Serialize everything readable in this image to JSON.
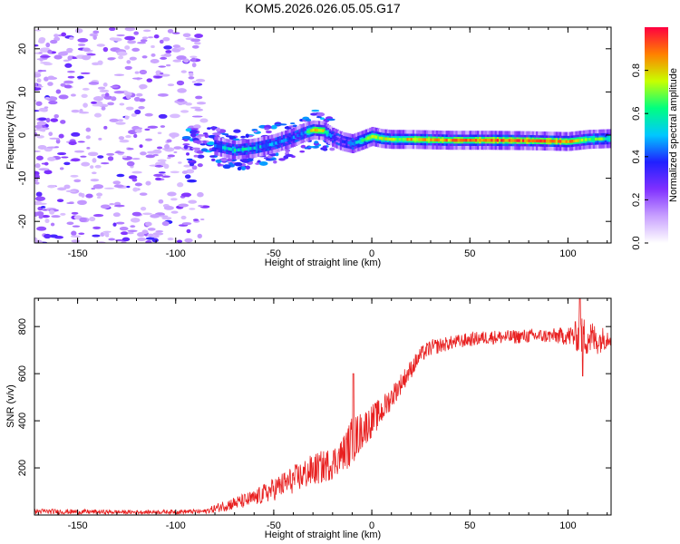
{
  "title": "KOM5.2026.026.05.05.G17",
  "colors": {
    "snr_line": "#e82020",
    "colormap": [
      "#ffffff",
      "#c8a0ff",
      "#8030ff",
      "#2020ff",
      "#00c8ff",
      "#00ff80",
      "#c8ff00",
      "#ff8000",
      "#ff0040"
    ]
  },
  "chart_data": [
    {
      "type": "heatmap",
      "name": "spectrogram",
      "xlabel": "Height of straight line (km)",
      "ylabel": "Frequency (Hz)",
      "xlim": [
        -172,
        122
      ],
      "ylim": [
        -25,
        25
      ],
      "xticks": [
        -150,
        -100,
        -50,
        0,
        50,
        100
      ],
      "xtick_labels": [
        "-150",
        "-100",
        "-50",
        "0",
        "50",
        "100"
      ],
      "yticks": [
        -20,
        -10,
        0,
        10,
        20
      ],
      "ytick_labels": [
        "-20",
        "-10",
        "0",
        "10",
        "20"
      ],
      "colorbar": {
        "label": "Normalized spectral amplitude",
        "range": [
          0,
          1
        ],
        "ticks": [
          0.0,
          0.2,
          0.4,
          0.6,
          0.8
        ],
        "tick_labels": [
          "0.0",
          "0.2",
          "0.4",
          "0.6",
          "0.8"
        ]
      },
      "ridge": {
        "x": [
          -80,
          -70,
          -60,
          -50,
          -40,
          -35,
          -30,
          -25,
          -20,
          -15,
          -10,
          -5,
          0,
          5,
          10,
          20,
          40,
          60,
          80,
          100,
          110,
          122
        ],
        "y": [
          -2.5,
          -3.5,
          -3.0,
          -2.0,
          -0.5,
          0.5,
          1.2,
          1.0,
          -0.5,
          -1.5,
          -2.0,
          -1.2,
          -0.3,
          -0.8,
          -1.0,
          -1.0,
          -1.2,
          -1.2,
          -1.3,
          -1.5,
          -1.0,
          -0.8
        ],
        "amplitude": [
          0.45,
          0.55,
          0.5,
          0.45,
          0.4,
          0.45,
          0.8,
          0.75,
          0.4,
          0.3,
          0.5,
          0.6,
          0.7,
          0.75,
          0.7,
          0.8,
          0.85,
          0.9,
          0.9,
          0.85,
          0.7,
          0.6
        ]
      },
      "noise_region_x": [
        -172,
        -75
      ]
    },
    {
      "type": "line",
      "name": "snr",
      "xlabel": "Height of straight line (km)",
      "ylabel": "SNR (v/v)",
      "xlim": [
        -172,
        122
      ],
      "ylim": [
        0,
        920
      ],
      "xticks": [
        -150,
        -100,
        -50,
        0,
        50,
        100
      ],
      "xtick_labels": [
        "-150",
        "-100",
        "-50",
        "0",
        "50",
        "100"
      ],
      "yticks": [
        200,
        400,
        600,
        800
      ],
      "ytick_labels": [
        "200",
        "400",
        "600",
        "800"
      ],
      "series": [
        {
          "name": "SNR",
          "envelope_x": [
            -172,
            -120,
            -85,
            -75,
            -60,
            -50,
            -40,
            -30,
            -20,
            -15,
            -10,
            -5,
            0,
            5,
            10,
            15,
            20,
            25,
            30,
            40,
            50,
            60,
            70,
            80,
            90,
            100,
            105,
            110,
            115,
            122
          ],
          "envelope_y": [
            15,
            12,
            15,
            40,
            70,
            110,
            150,
            190,
            220,
            260,
            310,
            360,
            400,
            440,
            500,
            560,
            620,
            680,
            710,
            730,
            745,
            755,
            755,
            760,
            760,
            760,
            760,
            760,
            740,
            760
          ],
          "noise_amp": [
            12,
            8,
            10,
            25,
            35,
            50,
            60,
            70,
            70,
            70,
            110,
            80,
            70,
            60,
            50,
            45,
            40,
            35,
            35,
            30,
            30,
            30,
            30,
            30,
            30,
            40,
            70,
            90,
            60,
            40
          ],
          "spikes": [
            {
              "x": -9.5,
              "y": 600
            },
            {
              "x": 106,
              "y": 920
            },
            {
              "x": 107.5,
              "y": 590
            }
          ]
        }
      ]
    }
  ]
}
